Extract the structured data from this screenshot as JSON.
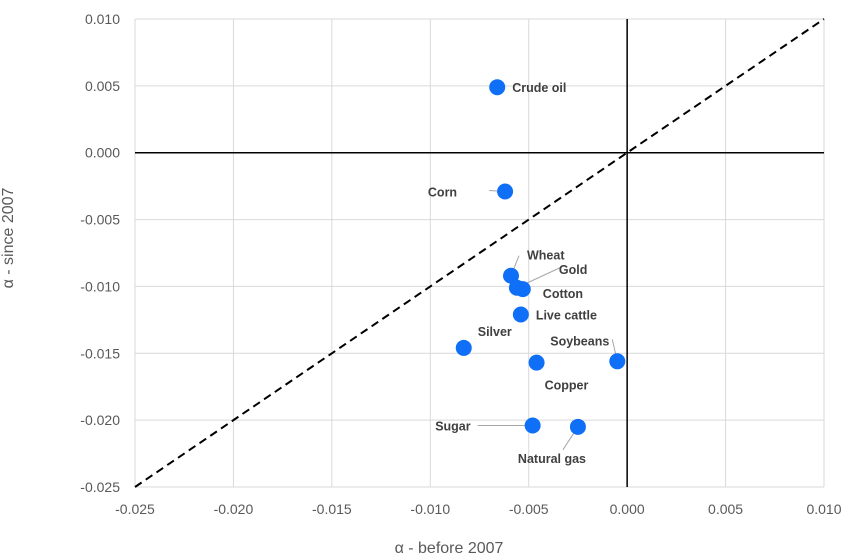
{
  "chart_data": {
    "type": "scatter",
    "title": "",
    "xlabel": "α - before 2007",
    "ylabel": "α - since 2007",
    "xlim": [
      -0.025,
      0.01
    ],
    "ylim": [
      -0.025,
      0.01
    ],
    "x_ticks": [
      "-0.025",
      "-0.020",
      "-0.015",
      "-0.010",
      "-0.005",
      "0.000",
      "0.005",
      "0.010"
    ],
    "y_ticks": [
      "0.010",
      "0.005",
      "0.000",
      "-0.005",
      "-0.010",
      "-0.015",
      "-0.020",
      "-0.025"
    ],
    "grid": true,
    "reference_line": "y = x (dashed)",
    "marker_color": "#0f6ff6",
    "points": [
      {
        "label": "Crude oil",
        "x": -0.0066,
        "y": 0.0049
      },
      {
        "label": "Corn",
        "x": -0.0062,
        "y": -0.0029
      },
      {
        "label": "Wheat",
        "x": -0.0059,
        "y": -0.0092
      },
      {
        "label": "Gold",
        "x": -0.0056,
        "y": -0.0101
      },
      {
        "label": "Cotton",
        "x": -0.0053,
        "y": -0.0102
      },
      {
        "label": "Live cattle",
        "x": -0.0054,
        "y": -0.0121
      },
      {
        "label": "Silver",
        "x": -0.0083,
        "y": -0.0146
      },
      {
        "label": "Soybeans",
        "x": -0.0005,
        "y": -0.0156
      },
      {
        "label": "Copper",
        "x": -0.0046,
        "y": -0.0157
      },
      {
        "label": "Sugar",
        "x": -0.0048,
        "y": -0.0204
      },
      {
        "label": "Natural gas",
        "x": -0.0025,
        "y": -0.0205
      }
    ]
  }
}
